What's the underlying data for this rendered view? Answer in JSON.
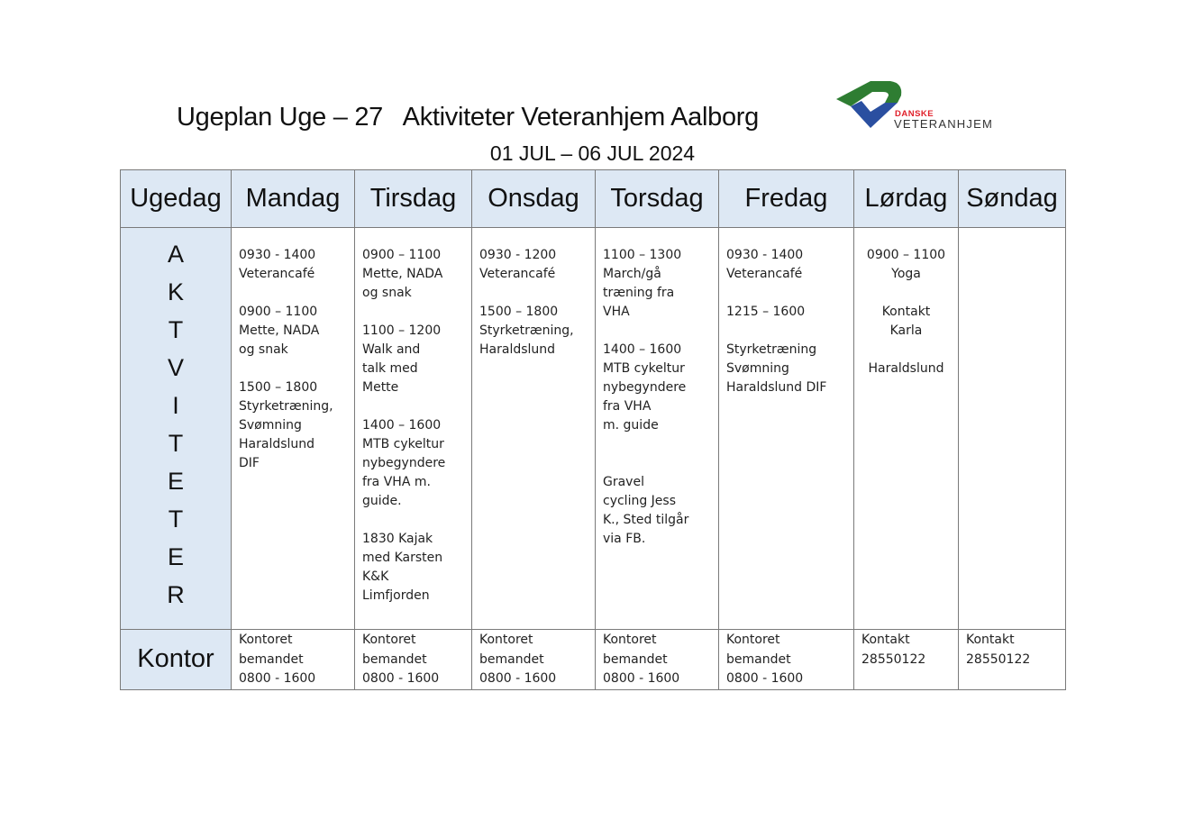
{
  "title": "Ugeplan Uge – 27   Aktiviteter Veteranhjem Aalborg",
  "subtitle": "01 JUL – 06 JUL 2024",
  "logo": {
    "line1": "DANSKE",
    "line2": "VETERANHJEM",
    "colors": {
      "green": "#2e7d32",
      "blue": "#2a4fa0",
      "red": "#e0202a"
    }
  },
  "header_bg": "#dde8f4",
  "table": {
    "headers": [
      "Ugedag",
      "Mandag",
      "Tirsdag",
      "Onsdag",
      "Torsdag",
      "Fredag",
      "Lørdag",
      "Søndag"
    ],
    "activity_label": [
      "A",
      "K",
      "T",
      "V",
      "I",
      "T",
      "E",
      "T",
      "E",
      "R"
    ],
    "activities": [
      [
        "0930 - 1400",
        "Veterancafé",
        "",
        "0900 – 1100",
        "Mette, NADA",
        "og snak",
        "",
        "1500 – 1800",
        "Styrketræning,",
        "Svømning",
        "Haraldslund",
        "DIF"
      ],
      [
        "0900 – 1100",
        "Mette, NADA",
        "og snak",
        "",
        "1100 – 1200",
        "Walk and",
        "talk med",
        "Mette",
        "",
        "1400 – 1600",
        "MTB cykeltur",
        "nybegyndere",
        "fra VHA m.",
        "guide.",
        "",
        "1830 Kajak",
        "med Karsten",
        "K&K",
        "Limfjorden"
      ],
      [
        "0930 - 1200",
        "Veterancafé",
        "",
        "1500 – 1800",
        "Styrketræning,",
        "Haraldslund"
      ],
      [
        "1100 – 1300",
        "March/gå",
        "træning fra",
        "VHA",
        "",
        "1400 – 1600",
        "MTB cykeltur",
        "nybegyndere",
        "fra VHA",
        "m. guide",
        "",
        "",
        "Gravel",
        "cycling Jess",
        "K., Sted tilgår",
        "via FB."
      ],
      [
        "0930 - 1400",
        "Veterancafé",
        "",
        "1215 – 1600",
        "",
        "Styrketræning",
        "Svømning",
        "Haraldslund DIF"
      ],
      [
        "0900 – 1100",
        "Yoga",
        "",
        "Kontakt",
        "Karla",
        "",
        "Haraldslund"
      ],
      []
    ],
    "kontor_label": "Kontor",
    "kontor": [
      [
        "Kontoret",
        "bemandet",
        "0800 - 1600"
      ],
      [
        "Kontoret",
        "bemandet",
        "0800 - 1600"
      ],
      [
        "Kontoret",
        "bemandet",
        "0800 - 1600"
      ],
      [
        "Kontoret",
        "bemandet",
        " 0800 - 1600"
      ],
      [
        "Kontoret",
        "bemandet",
        "0800 - 1600"
      ],
      [
        "Kontakt",
        "28550122"
      ],
      [
        "Kontakt",
        "28550122"
      ]
    ]
  }
}
